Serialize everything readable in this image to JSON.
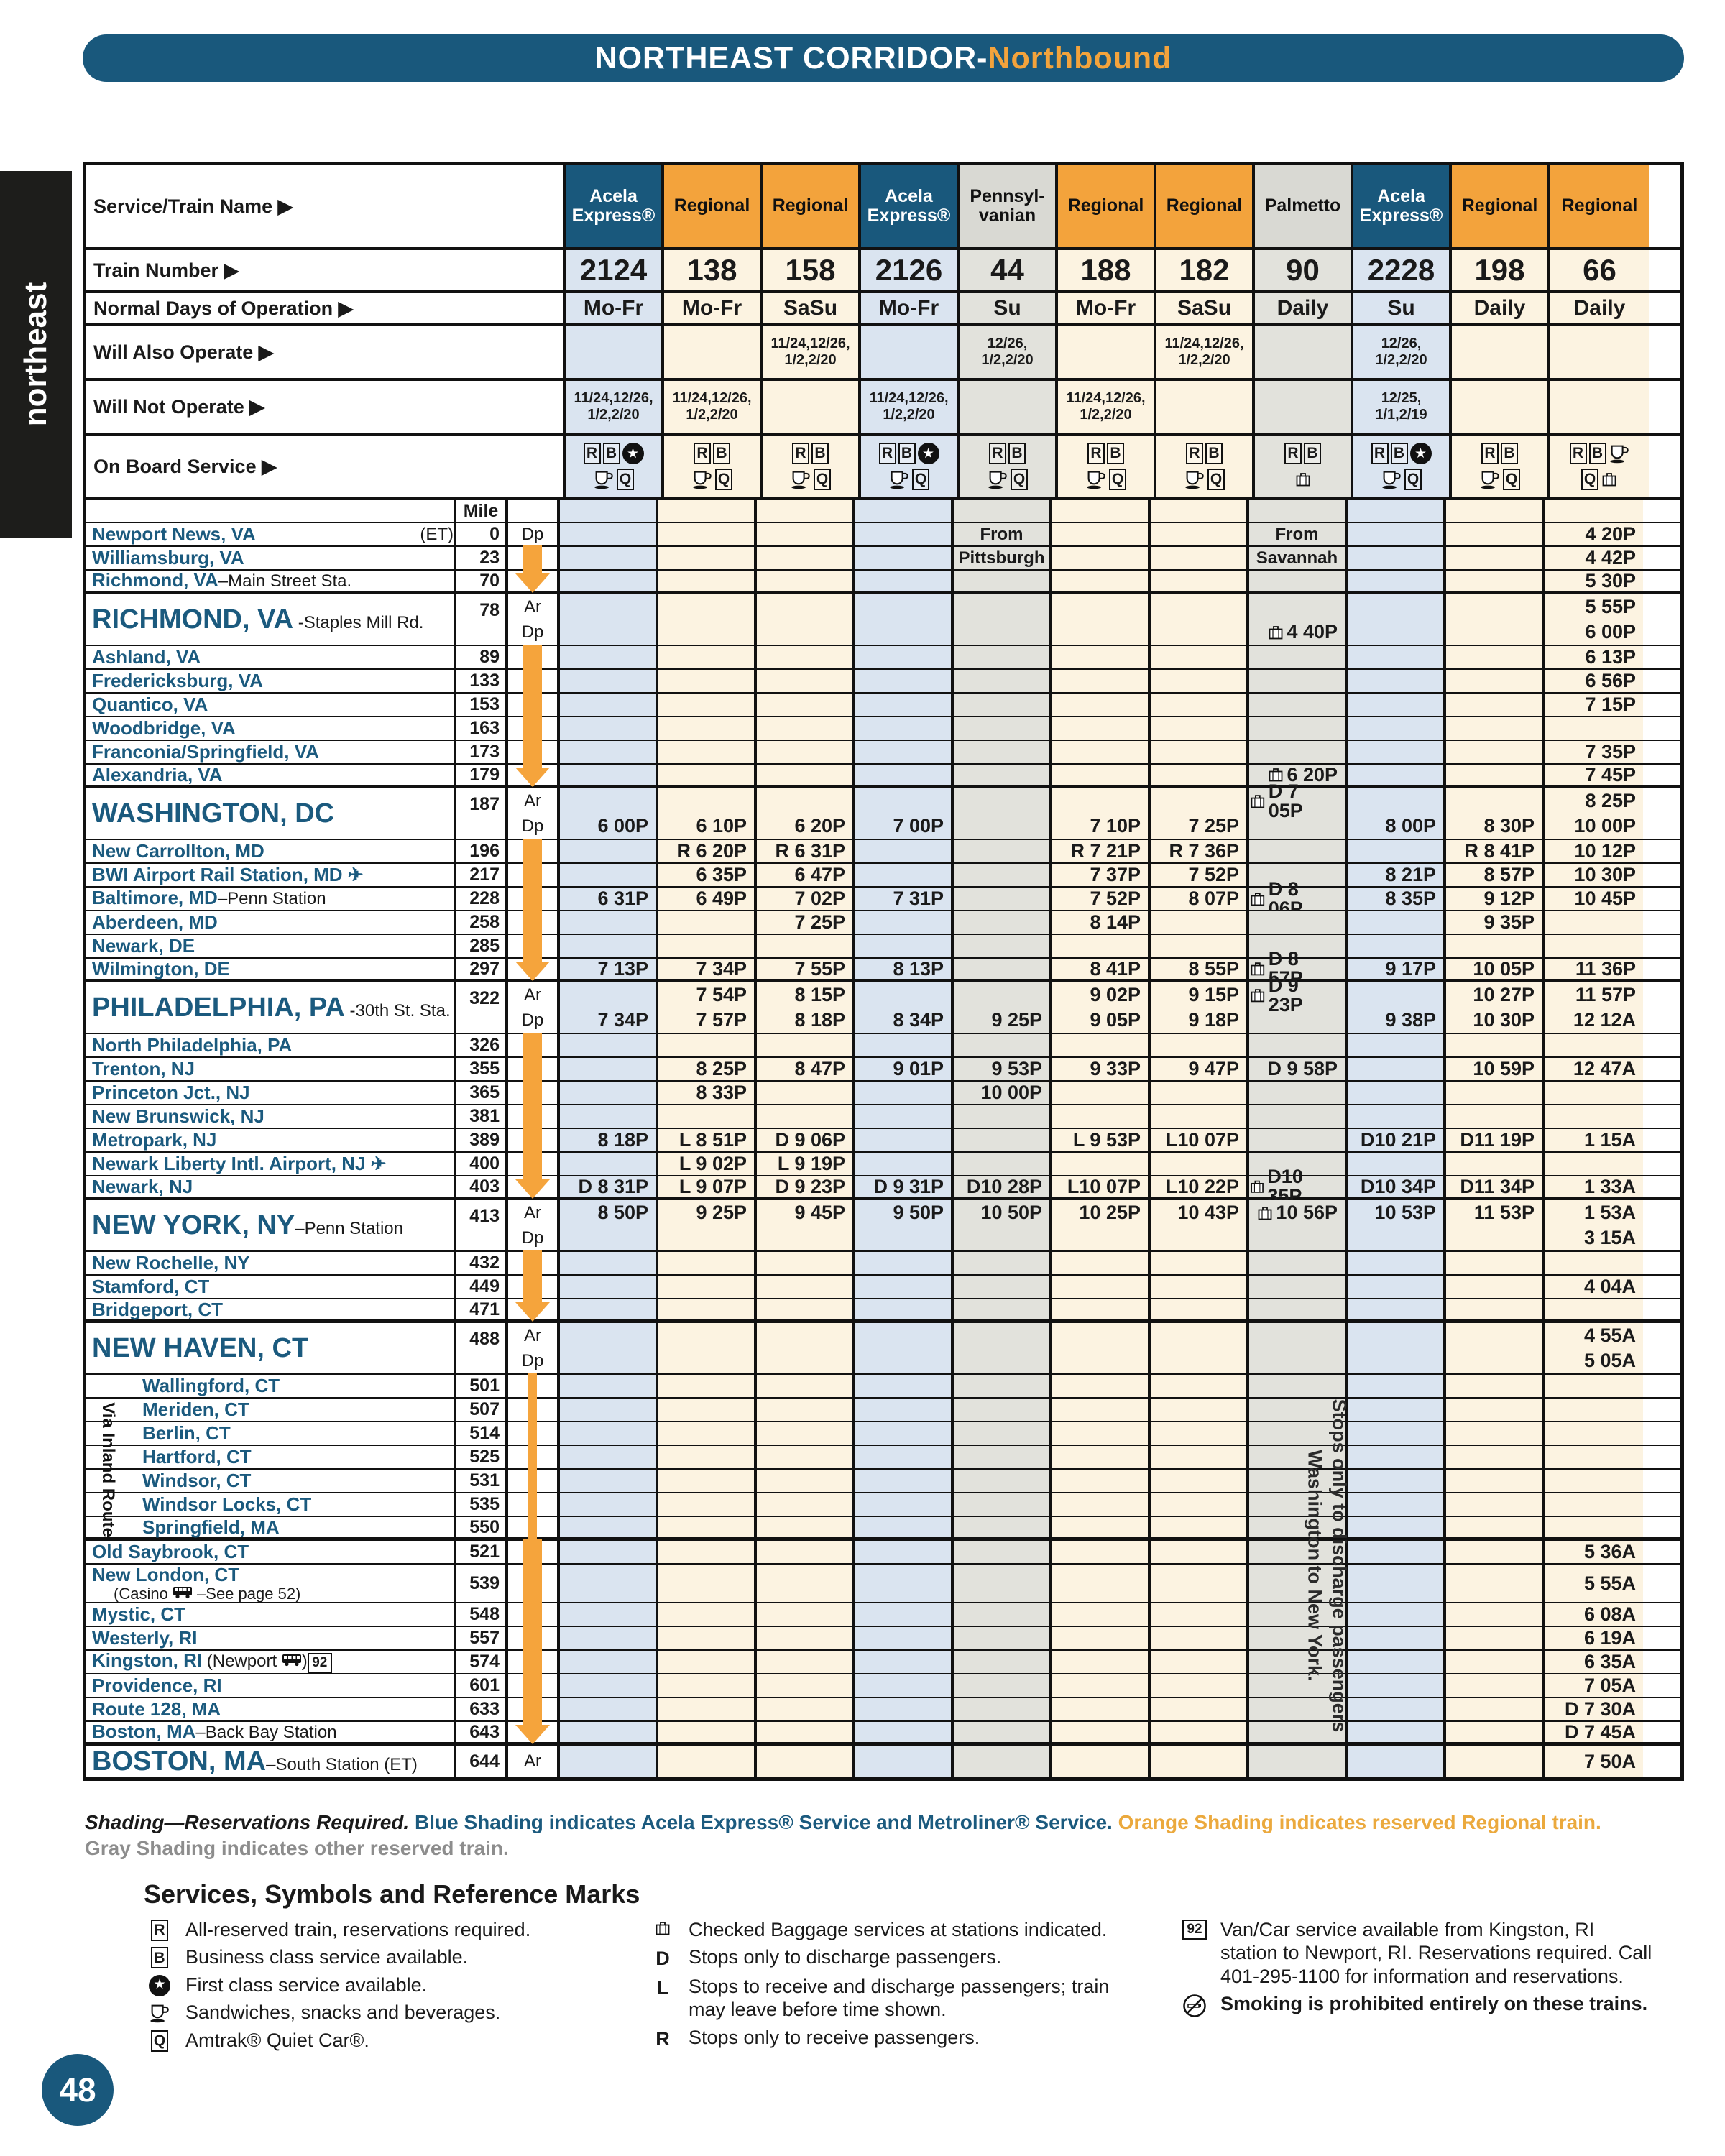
{
  "banner": {
    "title": "NORTHEAST CORRIDOR-",
    "accent": "Northbound"
  },
  "side_tab": "northeast",
  "page_number": "48",
  "colors": {
    "header_blue": "#19587c",
    "regional_orange": "#f3a33c",
    "gray_header": "#d9d9d3",
    "acela_cell": "#dae4f0",
    "regional_cell": "#fcf3e1",
    "gray_cell": "#e2e2dc",
    "arrow_orange": "#f5a43c",
    "station_teal": "#1b5a7e"
  },
  "header": {
    "service_label": "Service/Train Name ▶",
    "number_label": "Train Number ▶",
    "days_label": "Normal Days of Operation ▶",
    "also_label": "Will Also Operate ▶",
    "not_label": "Will Not Operate ▶",
    "onboard_label": "On Board Service ▶",
    "mile_label": "Mile"
  },
  "columns": [
    {
      "service": "Acela\nExpress®",
      "type": "acela",
      "number": "2124",
      "days": "Mo-Fr",
      "also": "",
      "not": "11/24,12/26,\n1/2,2/20",
      "icons": [
        [
          "R",
          "B",
          "star"
        ],
        [
          "cup",
          "Q"
        ]
      ]
    },
    {
      "service": "Regional",
      "type": "reg",
      "number": "138",
      "days": "Mo-Fr",
      "also": "",
      "not": "11/24,12/26,\n1/2,2/20",
      "icons": [
        [
          "R",
          "B"
        ],
        [
          "cup",
          "Q"
        ]
      ]
    },
    {
      "service": "Regional",
      "type": "reg",
      "number": "158",
      "days": "SaSu",
      "also": "11/24,12/26,\n1/2,2/20",
      "not": "",
      "icons": [
        [
          "R",
          "B"
        ],
        [
          "cup",
          "Q"
        ]
      ]
    },
    {
      "service": "Acela\nExpress®",
      "type": "acela",
      "number": "2126",
      "days": "Mo-Fr",
      "also": "",
      "not": "11/24,12/26,\n1/2,2/20",
      "icons": [
        [
          "R",
          "B",
          "star"
        ],
        [
          "cup",
          "Q"
        ]
      ]
    },
    {
      "service": "Pennsyl-\nvanian",
      "type": "gray",
      "number": "44",
      "days": "Su",
      "also": "12/26,\n1/2,2/20",
      "not": "",
      "icons": [
        [
          "R",
          "B"
        ],
        [
          "cup",
          "Q"
        ]
      ]
    },
    {
      "service": "Regional",
      "type": "reg",
      "number": "188",
      "days": "Mo-Fr",
      "also": "",
      "not": "11/24,12/26,\n1/2,2/20",
      "icons": [
        [
          "R",
          "B"
        ],
        [
          "cup",
          "Q"
        ]
      ]
    },
    {
      "service": "Regional",
      "type": "reg",
      "number": "182",
      "days": "SaSu",
      "also": "11/24,12/26,\n1/2,2/20",
      "not": "",
      "icons": [
        [
          "R",
          "B"
        ],
        [
          "cup",
          "Q"
        ]
      ]
    },
    {
      "service": "Palmetto",
      "type": "gray",
      "number": "90",
      "days": "Daily",
      "also": "",
      "not": "",
      "icons": [
        [
          "R",
          "B"
        ],
        [
          "bag"
        ]
      ]
    },
    {
      "service": "Acela\nExpress®",
      "type": "acela",
      "number": "2228",
      "days": "Su",
      "also": "12/26,\n1/2,2/20",
      "not": "12/25,\n1/1,2/19",
      "icons": [
        [
          "R",
          "B",
          "star"
        ],
        [
          "cup",
          "Q"
        ]
      ]
    },
    {
      "service": "Regional",
      "type": "reg",
      "number": "198",
      "days": "Daily",
      "also": "",
      "not": "",
      "icons": [
        [
          "R",
          "B"
        ],
        [
          "cup",
          "Q"
        ]
      ]
    },
    {
      "service": "Regional",
      "type": "reg",
      "number": "66",
      "days": "Daily",
      "also": "",
      "not": "",
      "icons": [
        [
          "R",
          "B",
          "cup"
        ],
        [
          "Q",
          "bag"
        ]
      ]
    }
  ],
  "stations": [
    {
      "name": "Newport News, VA",
      "right": "(ET)",
      "mile": "0",
      "lbl": "Dp",
      "t": [
        "",
        "",
        "",
        "",
        "From",
        "",
        "",
        "From",
        "",
        "",
        "4 20P"
      ]
    },
    {
      "name": "Williamsburg, VA",
      "mile": "23",
      "arrow": "line",
      "t": [
        "",
        "",
        "",
        "",
        "Pittsburgh",
        "",
        "",
        "Savannah",
        "",
        "",
        "4 42P"
      ]
    },
    {
      "name": "Richmond, VA",
      "sfx": "–Main Street Sta.",
      "mile": "70",
      "arrow": "head",
      "tkb": true,
      "t": [
        "",
        "",
        "",
        "",
        "",
        "",
        "",
        "",
        "",
        "",
        "5 30P"
      ]
    },
    {
      "name": "RICHMOND, VA",
      "sfx": " -Staples Mill Rd.",
      "big": true,
      "mile": "78",
      "lbl": "Ar|Dp",
      "tkb": false,
      "ar": [
        "",
        "",
        "",
        "",
        "",
        "",
        "",
        "",
        "",
        "",
        "5 55P"
      ],
      "dp": [
        "",
        "",
        "",
        "",
        "",
        "",
        "",
        "{bag} 4 40P",
        "",
        "",
        "6 00P"
      ]
    },
    {
      "name": "Ashland, VA",
      "mile": "89",
      "arrow": "line",
      "t": [
        "",
        "",
        "",
        "",
        "",
        "",
        "",
        "",
        "",
        "",
        "6 13P"
      ]
    },
    {
      "name": "Fredericksburg, VA",
      "mile": "133",
      "arrow": "line",
      "t": [
        "",
        "",
        "",
        "",
        "",
        "",
        "",
        "",
        "",
        "",
        "6 56P"
      ]
    },
    {
      "name": "Quantico, VA",
      "mile": "153",
      "arrow": "line",
      "t": [
        "",
        "",
        "",
        "",
        "",
        "",
        "",
        "",
        "",
        "",
        "7 15P"
      ]
    },
    {
      "name": "Woodbridge, VA",
      "mile": "163",
      "arrow": "line",
      "t": [
        "",
        "",
        "",
        "",
        "",
        "",
        "",
        "",
        "",
        "",
        ""
      ]
    },
    {
      "name": "Franconia/Springfield, VA",
      "mile": "173",
      "arrow": "line",
      "t": [
        "",
        "",
        "",
        "",
        "",
        "",
        "",
        "",
        "",
        "",
        "7 35P"
      ]
    },
    {
      "name": "Alexandria, VA",
      "mile": "179",
      "arrow": "head",
      "tkb": true,
      "t": [
        "",
        "",
        "",
        "",
        "",
        "",
        "",
        "{bag} 6 20P",
        "",
        "",
        "7 45P"
      ]
    },
    {
      "name": "WASHINGTON, DC",
      "big": true,
      "mile": "187",
      "lbl": "Ar|Dp",
      "ar": [
        "",
        "",
        "",
        "",
        "",
        "",
        "",
        "{bag}D 7 05P",
        "",
        "",
        "8 25P"
      ],
      "dp": [
        "6 00P",
        "6 10P",
        "6 20P",
        "7 00P",
        "",
        "7 10P",
        "7 25P",
        "",
        "8 00P",
        "8 30P",
        "10 00P"
      ]
    },
    {
      "name": "New Carrollton, MD",
      "mile": "196",
      "arrow": "line",
      "t": [
        "",
        "R 6 20P",
        "R 6 31P",
        "",
        "",
        "R 7 21P",
        "R 7 36P",
        "",
        "",
        "R 8 41P",
        "10 12P"
      ]
    },
    {
      "name": "BWI Airport Rail Station, MD ✈",
      "mile": "217",
      "arrow": "line",
      "t": [
        "",
        "6 35P",
        "6 47P",
        "",
        "",
        "7 37P",
        "7 52P",
        "",
        "8 21P",
        "8 57P",
        "10 30P"
      ]
    },
    {
      "name": "Baltimore, MD",
      "sfx": "–Penn Station",
      "mile": "228",
      "arrow": "line",
      "t": [
        "6 31P",
        "6 49P",
        "7 02P",
        "7 31P",
        "",
        "7 52P",
        "8 07P",
        "{bag}D 8 06P",
        "8 35P",
        "9 12P",
        "10 45P"
      ]
    },
    {
      "name": "Aberdeen, MD",
      "mile": "258",
      "arrow": "line",
      "t": [
        "",
        "",
        "7 25P",
        "",
        "",
        "8 14P",
        "",
        "",
        "",
        "9 35P",
        ""
      ]
    },
    {
      "name": "Newark, DE",
      "mile": "285",
      "arrow": "line",
      "t": [
        "",
        "",
        "",
        "",
        "",
        "",
        "",
        "",
        "",
        "",
        ""
      ]
    },
    {
      "name": "Wilmington, DE",
      "mile": "297",
      "arrow": "head",
      "tkb": true,
      "t": [
        "7 13P",
        "7 34P",
        "7 55P",
        "8 13P",
        "",
        "8 41P",
        "8 55P",
        "{bag}D 8 57P",
        "9 17P",
        "10 05P",
        "11 36P"
      ]
    },
    {
      "name": "PHILADELPHIA, PA",
      "sfx": " -30th St. Sta.",
      "big": true,
      "mile": "322",
      "lbl": "Ar|Dp",
      "ar": [
        "",
        "7 54P",
        "8 15P",
        "",
        "",
        "9 02P",
        "9 15P",
        "{bag}D 9 23P",
        "",
        "10 27P",
        "11 57P"
      ],
      "dp": [
        "7 34P",
        "7 57P",
        "8 18P",
        "8 34P",
        "9 25P",
        "9 05P",
        "9 18P",
        "",
        "9 38P",
        "10 30P",
        "12 12A"
      ]
    },
    {
      "name": "North Philadelphia, PA",
      "mile": "326",
      "arrow": "line",
      "t": [
        "",
        "",
        "",
        "",
        "",
        "",
        "",
        "",
        "",
        "",
        ""
      ]
    },
    {
      "name": "Trenton, NJ",
      "mile": "355",
      "arrow": "line",
      "t": [
        "",
        "8 25P",
        "8 47P",
        "9 01P",
        "9 53P",
        "9 33P",
        "9 47P",
        "D 9 58P",
        "",
        "10 59P",
        "12 47A"
      ]
    },
    {
      "name": "Princeton Jct., NJ",
      "mile": "365",
      "arrow": "line",
      "t": [
        "",
        "8 33P",
        "",
        "",
        "10 00P",
        "",
        "",
        "",
        "",
        "",
        ""
      ]
    },
    {
      "name": "New Brunswick, NJ",
      "mile": "381",
      "arrow": "line",
      "t": [
        "",
        "",
        "",
        "",
        "",
        "",
        "",
        "",
        "",
        "",
        ""
      ]
    },
    {
      "name": "Metropark, NJ",
      "mile": "389",
      "arrow": "line",
      "t": [
        "8 18P",
        "L 8 51P",
        "D 9 06P",
        "",
        "",
        "L 9 53P",
        "L10 07P",
        "",
        "D10 21P",
        "D11 19P",
        "1 15A"
      ]
    },
    {
      "name": "Newark Liberty Intl. Airport, NJ ✈",
      "mile": "400",
      "arrow": "line",
      "t": [
        "",
        "L 9 02P",
        "L 9 19P",
        "",
        "",
        "",
        "",
        "",
        "",
        "",
        ""
      ]
    },
    {
      "name": "Newark, NJ",
      "mile": "403",
      "arrow": "head",
      "tkb": true,
      "t": [
        "D 8 31P",
        "L 9 07P",
        "D 9 23P",
        "D 9 31P",
        "D10 28P",
        "L10 07P",
        "L10 22P",
        "{bag}D10 35P",
        "D10 34P",
        "D11 34P",
        "1 33A"
      ]
    },
    {
      "name": "NEW YORK, NY",
      "sfx": "–Penn Station",
      "big": true,
      "mile": "413",
      "lbl": "Ar|Dp",
      "ar": [
        "8 50P",
        "9 25P",
        "9 45P",
        "9 50P",
        "10 50P",
        "10 25P",
        "10 43P",
        "{bag} 10 56P",
        "10 53P",
        "11 53P",
        "1 53A"
      ],
      "dp": [
        "",
        "",
        "",
        "",
        "",
        "",
        "",
        "",
        "",
        "",
        "3 15A"
      ]
    },
    {
      "name": "New Rochelle, NY",
      "mile": "432",
      "arrow": "line",
      "t": [
        "",
        "",
        "",
        "",
        "",
        "",
        "",
        "",
        "",
        "",
        ""
      ]
    },
    {
      "name": "Stamford, CT",
      "mile": "449",
      "arrow": "line",
      "t": [
        "",
        "",
        "",
        "",
        "",
        "",
        "",
        "",
        "",
        "",
        "4 04A"
      ]
    },
    {
      "name": "Bridgeport, CT",
      "mile": "471",
      "arrow": "head",
      "tkb": true,
      "t": [
        "",
        "",
        "",
        "",
        "",
        "",
        "",
        "",
        "",
        "",
        ""
      ]
    },
    {
      "name": "NEW HAVEN, CT",
      "big": true,
      "mile": "488",
      "lbl": "Ar|Dp",
      "ar": [
        "",
        "",
        "",
        "",
        "",
        "",
        "",
        "",
        "",
        "",
        "4 55A"
      ],
      "dp": [
        "",
        "",
        "",
        "",
        "",
        "",
        "",
        "",
        "",
        "",
        "5 05A"
      ]
    },
    {
      "name": "Wallingford, CT",
      "inland": true,
      "mile": "501",
      "arrow": "thin",
      "t": [
        "",
        "",
        "",
        "",
        "",
        "",
        "",
        "",
        "",
        "",
        ""
      ]
    },
    {
      "name": "Meriden, CT",
      "inland": true,
      "mile": "507",
      "arrow": "thin",
      "t": [
        "",
        "",
        "",
        "",
        "",
        "",
        "",
        "",
        "",
        "",
        ""
      ]
    },
    {
      "name": "Berlin, CT",
      "inland": true,
      "mile": "514",
      "arrow": "thin",
      "t": [
        "",
        "",
        "",
        "",
        "",
        "",
        "",
        "",
        "",
        "",
        ""
      ]
    },
    {
      "name": "Hartford, CT",
      "inland": true,
      "mile": "525",
      "arrow": "thin",
      "t": [
        "",
        "",
        "",
        "",
        "",
        "",
        "",
        "",
        "",
        "",
        ""
      ]
    },
    {
      "name": "Windsor, CT",
      "inland": true,
      "mile": "531",
      "arrow": "thin",
      "t": [
        "",
        "",
        "",
        "",
        "",
        "",
        "",
        "",
        "",
        "",
        ""
      ]
    },
    {
      "name": "Windsor Locks, CT",
      "inland": true,
      "mile": "535",
      "arrow": "thin",
      "t": [
        "",
        "",
        "",
        "",
        "",
        "",
        "",
        "",
        "",
        "",
        ""
      ]
    },
    {
      "name": "Springfield, MA",
      "inland": true,
      "mile": "550",
      "arrow": "thin",
      "tkb": true,
      "t": [
        "",
        "",
        "",
        "",
        "",
        "",
        "",
        "",
        "",
        "",
        ""
      ]
    },
    {
      "name": "Old Saybrook, CT",
      "mile": "521",
      "arrow": "line",
      "t": [
        "",
        "",
        "",
        "",
        "",
        "",
        "",
        "",
        "",
        "",
        "5 36A"
      ]
    },
    {
      "name": "New London, CT",
      "sub": "(Casino {bus} –See page 52)",
      "tall": true,
      "mile": "539",
      "arrow": "line",
      "t": [
        "",
        "",
        "",
        "",
        "",
        "",
        "",
        "",
        "",
        "",
        "5 55A"
      ]
    },
    {
      "name": "Mystic, CT",
      "mile": "548",
      "arrow": "line",
      "t": [
        "",
        "",
        "",
        "",
        "",
        "",
        "",
        "",
        "",
        "",
        "6 08A"
      ]
    },
    {
      "name": "Westerly, RI",
      "mile": "557",
      "arrow": "line",
      "t": [
        "",
        "",
        "",
        "",
        "",
        "",
        "",
        "",
        "",
        "",
        "6 19A"
      ]
    },
    {
      "name": "Kingston, RI",
      "sfx": " (Newport {bus}){r92}",
      "mile": "574",
      "arrow": "line",
      "t": [
        "",
        "",
        "",
        "",
        "",
        "",
        "",
        "",
        "",
        "",
        "6 35A"
      ]
    },
    {
      "name": "Providence, RI",
      "mile": "601",
      "arrow": "line",
      "t": [
        "",
        "",
        "",
        "",
        "",
        "",
        "",
        "",
        "",
        "",
        "7 05A"
      ]
    },
    {
      "name": "Route 128, MA",
      "mile": "633",
      "arrow": "line",
      "t": [
        "",
        "",
        "",
        "",
        "",
        "",
        "",
        "",
        "",
        "",
        "D 7 30A"
      ]
    },
    {
      "name": "Boston, MA",
      "sfx": "–Back Bay Station",
      "mile": "643",
      "arrow": "head",
      "tkb": true,
      "t": [
        "",
        "",
        "",
        "",
        "",
        "",
        "",
        "",
        "",
        "",
        "D 7 45A"
      ]
    },
    {
      "name": "BOSTON, MA",
      "sfx": "–South Station (ET)",
      "big": true,
      "bos": true,
      "mile": "644",
      "lbl": "Ar",
      "t": [
        "",
        "",
        "",
        "",
        "",
        "",
        "",
        "",
        "",
        "",
        "7 50A"
      ]
    }
  ],
  "inland_label": "Via Inland Route",
  "discharge_note": "Stops only to discharge passengers\nWashington to New York.",
  "shading_note": {
    "part1": "Shading—Reservations Required. ",
    "part2": "Blue Shading indicates Acela Express® Service and Metroliner® Service. ",
    "part3": "Orange Shading indicates reserved Regional train.",
    "part4": "Gray Shading indicates other reserved train."
  },
  "legend": {
    "title": "Services, Symbols and Reference Marks",
    "col1": [
      {
        "icon": "R",
        "text": "All-reserved train, reservations required."
      },
      {
        "icon": "B",
        "text": "Business class service available."
      },
      {
        "icon": "star",
        "text": "First class service available."
      },
      {
        "icon": "cup",
        "text": "Sandwiches, snacks and beverages."
      },
      {
        "icon": "Q",
        "text": "Amtrak® Quiet Car®."
      }
    ],
    "col2": [
      {
        "icon": "bag",
        "text": "Checked Baggage services at stations indicated."
      },
      {
        "icon": "D",
        "text": "Stops only to discharge passengers."
      },
      {
        "icon": "L",
        "text": "Stops to receive and discharge passengers; train may leave before time shown."
      },
      {
        "icon": "R2",
        "text": "Stops only to receive passengers."
      }
    ],
    "col3": [
      {
        "icon": "r92",
        "text": "Van/Car service available from Kingston, RI station to Newport, RI. Reservations required. Call 401-295-1100 for information and reservations."
      },
      {
        "icon": "nosmoke",
        "text": "Smoking is prohibited entirely on these trains.",
        "bold": true
      }
    ]
  }
}
